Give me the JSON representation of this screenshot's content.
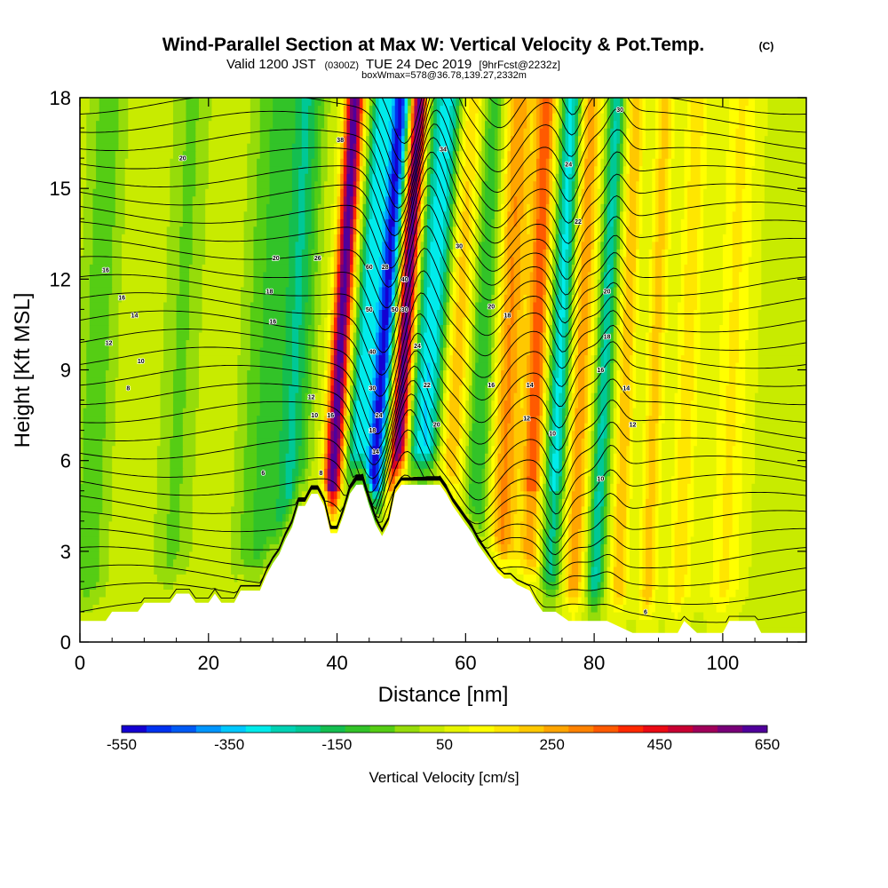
{
  "chart_data": {
    "type": "heatmap",
    "title": "Wind-Parallel Section at Max W: Vertical Velocity & Pot.Temp.",
    "title_mark": "(C)",
    "subtitle_main": "Valid 1200 JST",
    "subtitle_zulu": "(0300Z)",
    "subtitle_date": "TUE 24 Dec 2019",
    "subtitle_fcst": "[9hrFcst@2232z]",
    "subtitle_box": "boxWmax=578@36.78,139.27,2332m",
    "xlabel": "Distance [nm]",
    "ylabel": "Height [Kft MSL]",
    "xlim": [
      0,
      113
    ],
    "ylim": [
      0,
      18
    ],
    "x_ticks": [
      "0",
      "20",
      "40",
      "60",
      "80",
      "100"
    ],
    "y_ticks": [
      "0",
      "3",
      "6",
      "9",
      "12",
      "15",
      "18"
    ],
    "colorbar_label": "Vertical Velocity [cm/s]",
    "colorbar_ticks": [
      "-550",
      "-350",
      "-150",
      "50",
      "250",
      "450",
      "650"
    ],
    "colorbar_range": [
      -550,
      650
    ],
    "colorbar_colors": [
      "#1400d2",
      "#0032f0",
      "#005af5",
      "#0096ff",
      "#00c8ff",
      "#00ebeb",
      "#00d2b4",
      "#00c896",
      "#14be50",
      "#32c328",
      "#55cd14",
      "#96dc0a",
      "#c8eb00",
      "#e6f500",
      "#ffff00",
      "#ffe600",
      "#ffc800",
      "#ffa500",
      "#ff8200",
      "#ff5a00",
      "#ff2800",
      "#eb0a14",
      "#c80032",
      "#a0005a",
      "#780078",
      "#50009b"
    ],
    "background_value": 40,
    "features": [
      {
        "x": 2,
        "width": 3,
        "amp": -110
      },
      {
        "x": 15,
        "width": 3,
        "amp": -90
      },
      {
        "x": 28,
        "width": 3.5,
        "amp": -130
      },
      {
        "x": 33,
        "width": 2.5,
        "amp": -210
      },
      {
        "x": 39.5,
        "width": 1.4,
        "amp": 600
      },
      {
        "x": 43,
        "width": 1.5,
        "amp": -330
      },
      {
        "x": 46,
        "width": 1.6,
        "amp": -560
      },
      {
        "x": 49.5,
        "width": 1.4,
        "amp": 620
      },
      {
        "x": 53.5,
        "width": 2.8,
        "amp": -380
      },
      {
        "x": 57.5,
        "width": 2.5,
        "amp": 240
      },
      {
        "x": 62,
        "width": 2.5,
        "amp": -200
      },
      {
        "x": 66,
        "width": 2.5,
        "amp": 260
      },
      {
        "x": 70.5,
        "width": 1.5,
        "amp": 320
      },
      {
        "x": 74,
        "width": 1.5,
        "amp": -330
      },
      {
        "x": 77.5,
        "width": 1.6,
        "amp": 230
      },
      {
        "x": 81,
        "width": 1.3,
        "amp": -270
      },
      {
        "x": 84.5,
        "width": 1.3,
        "amp": 190
      },
      {
        "x": 89,
        "width": 1.4,
        "amp": 170
      },
      {
        "x": 94,
        "width": 1.8,
        "amp": 130
      },
      {
        "x": 101,
        "width": 2.5,
        "amp": 110
      }
    ],
    "terrain": [
      [
        0,
        0.7
      ],
      [
        4,
        0.7
      ],
      [
        5,
        1.0
      ],
      [
        9,
        1.0
      ],
      [
        10,
        1.3
      ],
      [
        14,
        1.3
      ],
      [
        15,
        1.6
      ],
      [
        17,
        1.6
      ],
      [
        18,
        1.3
      ],
      [
        20,
        1.3
      ],
      [
        21,
        1.6
      ],
      [
        22,
        1.3
      ],
      [
        24,
        1.3
      ],
      [
        25,
        1.7
      ],
      [
        28,
        1.7
      ],
      [
        29,
        2.2
      ],
      [
        30,
        2.6
      ],
      [
        31,
        2.9
      ],
      [
        32,
        3.4
      ],
      [
        33,
        3.8
      ],
      [
        34,
        4.5
      ],
      [
        35,
        4.5
      ],
      [
        36,
        4.9
      ],
      [
        37,
        4.9
      ],
      [
        38,
        4.5
      ],
      [
        39,
        3.6
      ],
      [
        40,
        3.6
      ],
      [
        41,
        4.2
      ],
      [
        42,
        4.9
      ],
      [
        43,
        5.2
      ],
      [
        44,
        5.2
      ],
      [
        45,
        4.5
      ],
      [
        46,
        3.9
      ],
      [
        47,
        3.5
      ],
      [
        48,
        3.9
      ],
      [
        49,
        4.9
      ],
      [
        50,
        5.2
      ],
      [
        56,
        5.2
      ],
      [
        57,
        4.9
      ],
      [
        58,
        4.5
      ],
      [
        59,
        4.2
      ],
      [
        60,
        3.9
      ],
      [
        61,
        3.6
      ],
      [
        62,
        3.2
      ],
      [
        63,
        2.9
      ],
      [
        64,
        2.6
      ],
      [
        65,
        2.3
      ],
      [
        66,
        2.1
      ],
      [
        67,
        2.1
      ],
      [
        68,
        1.9
      ],
      [
        70,
        1.7
      ],
      [
        71,
        1.3
      ],
      [
        72,
        1.0
      ],
      [
        74,
        1.0
      ],
      [
        76,
        0.7
      ],
      [
        82,
        0.7
      ],
      [
        86,
        0.3
      ],
      [
        93,
        0.3
      ],
      [
        94,
        0.7
      ],
      [
        96,
        0.3
      ],
      [
        100,
        0.3
      ],
      [
        101,
        0.7
      ],
      [
        105,
        0.7
      ],
      [
        106,
        0.3
      ],
      [
        113,
        0.3
      ]
    ],
    "isentrope_levels": [
      6,
      10,
      12,
      14,
      16,
      18,
      20,
      22,
      24,
      26,
      28,
      30,
      32,
      34,
      36,
      38,
      40,
      44,
      48,
      52,
      56,
      60,
      64,
      68,
      72,
      76,
      80,
      84,
      88,
      92,
      96
    ],
    "contour_labels": [
      {
        "x": 16,
        "y": 16.0,
        "text": "20"
      },
      {
        "x": 4,
        "y": 12.3,
        "text": "16"
      },
      {
        "x": 6.5,
        "y": 11.4,
        "text": "16"
      },
      {
        "x": 8.5,
        "y": 10.8,
        "text": "14"
      },
      {
        "x": 4.5,
        "y": 9.9,
        "text": "12"
      },
      {
        "x": 9.5,
        "y": 9.3,
        "text": "10"
      },
      {
        "x": 7.5,
        "y": 8.4,
        "text": "8"
      },
      {
        "x": 28.5,
        "y": 5.6,
        "text": "6"
      },
      {
        "x": 30.5,
        "y": 12.7,
        "text": "20"
      },
      {
        "x": 29.5,
        "y": 11.6,
        "text": "18"
      },
      {
        "x": 30,
        "y": 10.6,
        "text": "16"
      },
      {
        "x": 37,
        "y": 12.7,
        "text": "26"
      },
      {
        "x": 40.5,
        "y": 16.6,
        "text": "38"
      },
      {
        "x": 45,
        "y": 12.4,
        "text": "60"
      },
      {
        "x": 47.5,
        "y": 12.4,
        "text": "28"
      },
      {
        "x": 45,
        "y": 11.0,
        "text": "50"
      },
      {
        "x": 45.5,
        "y": 9.6,
        "text": "40"
      },
      {
        "x": 45.5,
        "y": 8.4,
        "text": "30"
      },
      {
        "x": 46.5,
        "y": 7.5,
        "text": "24"
      },
      {
        "x": 45.5,
        "y": 7.0,
        "text": "18"
      },
      {
        "x": 46,
        "y": 6.3,
        "text": "14"
      },
      {
        "x": 36,
        "y": 8.1,
        "text": "12"
      },
      {
        "x": 36.5,
        "y": 7.5,
        "text": "10"
      },
      {
        "x": 37.5,
        "y": 5.6,
        "text": "8"
      },
      {
        "x": 39,
        "y": 7.5,
        "text": "16"
      },
      {
        "x": 49,
        "y": 11.0,
        "text": "50"
      },
      {
        "x": 50.5,
        "y": 11.0,
        "text": "30"
      },
      {
        "x": 50.5,
        "y": 12.0,
        "text": "40"
      },
      {
        "x": 52.5,
        "y": 9.8,
        "text": "24"
      },
      {
        "x": 54,
        "y": 8.5,
        "text": "22"
      },
      {
        "x": 55.5,
        "y": 7.2,
        "text": "20"
      },
      {
        "x": 56.5,
        "y": 16.3,
        "text": "34"
      },
      {
        "x": 59,
        "y": 13.1,
        "text": "30"
      },
      {
        "x": 64,
        "y": 11.1,
        "text": "20"
      },
      {
        "x": 66.5,
        "y": 10.8,
        "text": "18"
      },
      {
        "x": 64,
        "y": 8.5,
        "text": "16"
      },
      {
        "x": 70,
        "y": 8.5,
        "text": "14"
      },
      {
        "x": 69.5,
        "y": 7.4,
        "text": "12"
      },
      {
        "x": 73.5,
        "y": 6.9,
        "text": "10"
      },
      {
        "x": 76,
        "y": 15.8,
        "text": "24"
      },
      {
        "x": 77.5,
        "y": 13.9,
        "text": "22"
      },
      {
        "x": 82,
        "y": 11.6,
        "text": "20"
      },
      {
        "x": 82,
        "y": 10.1,
        "text": "18"
      },
      {
        "x": 81,
        "y": 9.0,
        "text": "16"
      },
      {
        "x": 85,
        "y": 8.4,
        "text": "14"
      },
      {
        "x": 86,
        "y": 7.2,
        "text": "12"
      },
      {
        "x": 81,
        "y": 5.4,
        "text": "10"
      },
      {
        "x": 84,
        "y": 17.6,
        "text": "30"
      },
      {
        "x": 88,
        "y": 1.0,
        "text": "6"
      }
    ]
  }
}
